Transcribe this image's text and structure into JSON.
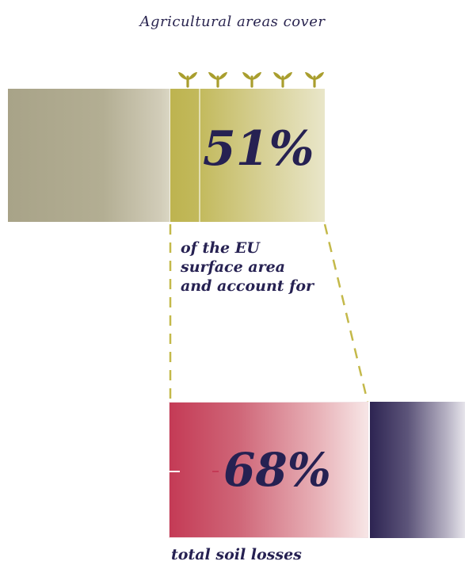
{
  "intro": "Agricultural areas cover",
  "stat_1": {
    "value": "51%",
    "caption_lines": [
      "of the EU",
      "surface area",
      "and account for"
    ]
  },
  "stat_2": {
    "value": "68%",
    "caption": "total soil losses"
  },
  "colors": {
    "olive": "#bdb34f",
    "olive_light": "#e9e6c9",
    "gray_olive": "#a8a388",
    "crimson": "#c43a55",
    "navy": "#262152",
    "sprout": "#a99e2e",
    "connector": "#c4b94a"
  },
  "icons": [
    "sprout-icon",
    "sprout-icon",
    "sprout-icon",
    "sprout-icon",
    "sprout-icon"
  ]
}
